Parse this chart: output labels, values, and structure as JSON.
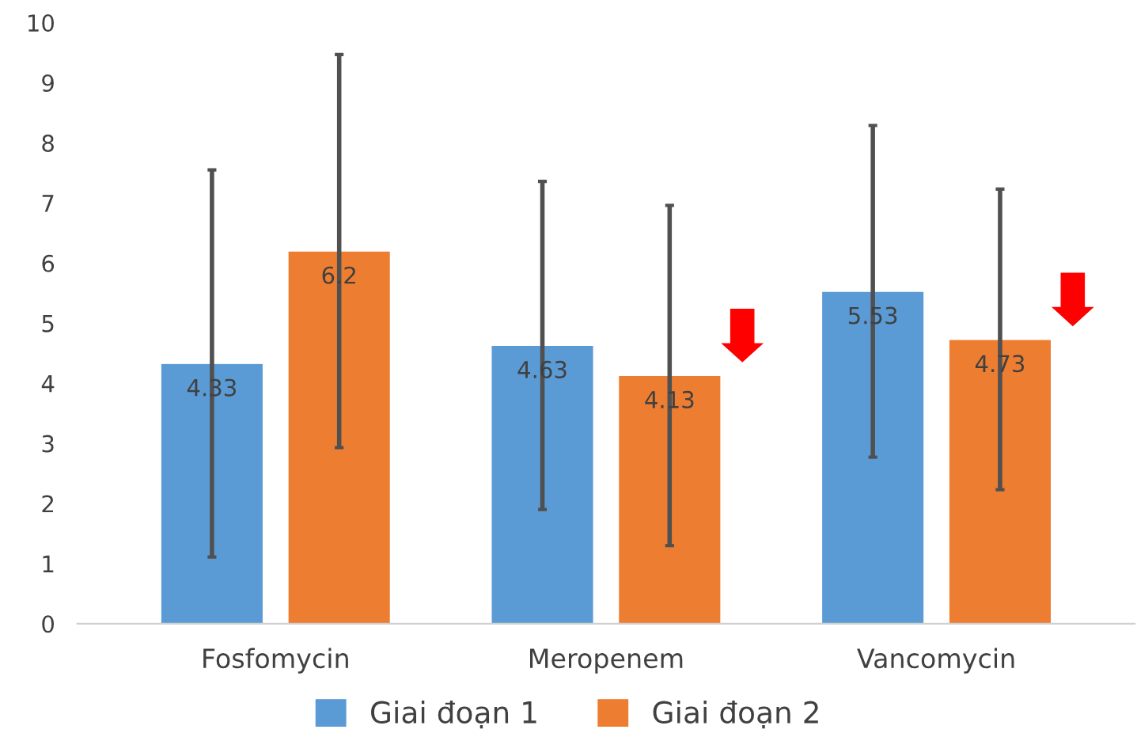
{
  "chart_data": {
    "type": "bar",
    "categories": [
      "Fosfomycin",
      "Meropenem",
      "Vancomycin"
    ],
    "series": [
      {
        "name": "Giai đoạn 1",
        "color": "#5b9bd5",
        "values": [
          4.33,
          4.63,
          5.53
        ],
        "errors": [
          3.22,
          2.73,
          2.76
        ]
      },
      {
        "name": "Giai đoạn 2",
        "color": "#ed7d31",
        "values": [
          6.2,
          4.13,
          4.73
        ],
        "errors": [
          3.27,
          2.83,
          2.5
        ]
      }
    ],
    "ylim": [
      0,
      10
    ],
    "yticks": [
      0,
      1,
      2,
      3,
      4,
      5,
      6,
      7,
      8,
      9,
      10
    ],
    "data_labels": true,
    "grid": false,
    "legend": "bottom"
  }
}
